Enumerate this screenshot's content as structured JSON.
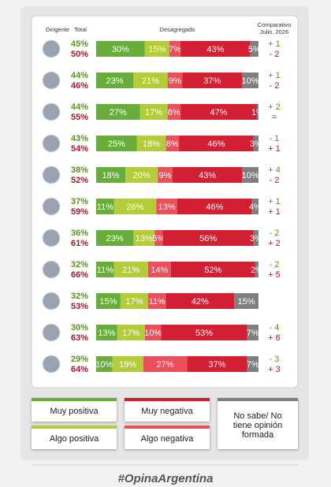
{
  "chart_data": {
    "type": "bar",
    "orientation": "horizontal",
    "stacked": true,
    "headers": {
      "dirigente": "Dirigente",
      "total": "Total",
      "desagregado": "Desagregado",
      "comparativo": [
        "Comparativo",
        "Julio. 2026"
      ]
    },
    "categories": [
      null,
      null,
      null,
      null,
      null,
      null,
      null,
      null,
      null,
      null,
      null
    ],
    "xlim": [
      0,
      100
    ],
    "series": [
      {
        "name": "Muy positiva",
        "color": "#68ad3c",
        "values": [
          30,
          23,
          27,
          25,
          18,
          11,
          23,
          11,
          15,
          13,
          10
        ],
        "value_labels": [
          "30%",
          "23%",
          "27%",
          "25%",
          "18%",
          "11%",
          "23%",
          "11%",
          "15%",
          "13%",
          "10%"
        ]
      },
      {
        "name": "Algo positiva",
        "color": "#b3cd3a",
        "values": [
          15,
          21,
          17,
          18,
          20,
          26,
          13,
          21,
          17,
          17,
          19
        ],
        "value_labels": [
          "15%",
          "21%",
          "17%",
          "18%",
          "20%",
          "26%",
          "13%",
          "21%",
          "17%",
          "17%",
          "19%"
        ]
      },
      {
        "name": "Algo negativa",
        "color": "#ea4f5c",
        "values": [
          7,
          9,
          8,
          8,
          9,
          13,
          5,
          14,
          11,
          10,
          27
        ],
        "value_labels": [
          "7%",
          "9%",
          "8%",
          "8%",
          "9%",
          "13%",
          "5%",
          "14%",
          "11%",
          "10%",
          "27%"
        ]
      },
      {
        "name": "Muy negativa",
        "color": "#d21f33",
        "values": [
          43,
          37,
          47,
          46,
          43,
          46,
          56,
          52,
          42,
          53,
          37
        ],
        "value_labels": [
          "43%",
          "37%",
          "47%",
          "46%",
          "43%",
          "46%",
          "56%",
          "52%",
          "42%",
          "53%",
          "37%"
        ]
      },
      {
        "name": "No sabe/ No tiene opinión formada",
        "color": "#7f7f7f",
        "values": [
          5,
          10,
          1,
          3,
          10,
          4,
          3,
          2,
          15,
          7,
          7
        ],
        "value_labels": [
          "5%",
          "10%",
          "1%",
          "3%",
          "10%",
          "4%",
          "3%",
          "2%",
          "15%",
          "7%",
          "7%"
        ]
      }
    ],
    "total_positive": {
      "color": "#5e8f24",
      "values": [
        45,
        44,
        44,
        43,
        38,
        37,
        36,
        32,
        32,
        30,
        29
      ],
      "value_labels": [
        "45%",
        "44%",
        "44%",
        "43%",
        "38%",
        "37%",
        "36%",
        "32%",
        "32%",
        "30%",
        "29%"
      ]
    },
    "total_negative": {
      "color": "#b5122c",
      "values": [
        50,
        46,
        55,
        54,
        52,
        59,
        61,
        66,
        53,
        63,
        64
      ],
      "value_labels": [
        "50%",
        "46%",
        "55%",
        "54%",
        "52%",
        "59%",
        "61%",
        "66%",
        "53%",
        "63%",
        "64%"
      ]
    },
    "comparison_positive": [
      "+ 1",
      "+ 1",
      "+ 2",
      "- 1",
      "+ 4",
      "+ 1",
      "- 2",
      "- 2",
      null,
      "- 4",
      "- 3"
    ],
    "comparison_negative": [
      "- 2",
      "- 2",
      "=",
      "+ 1",
      "- 2",
      "+ 1",
      "+ 2",
      "+ 5",
      null,
      "+ 6",
      "+ 3"
    ],
    "footer": "#OpinaArgentina"
  }
}
